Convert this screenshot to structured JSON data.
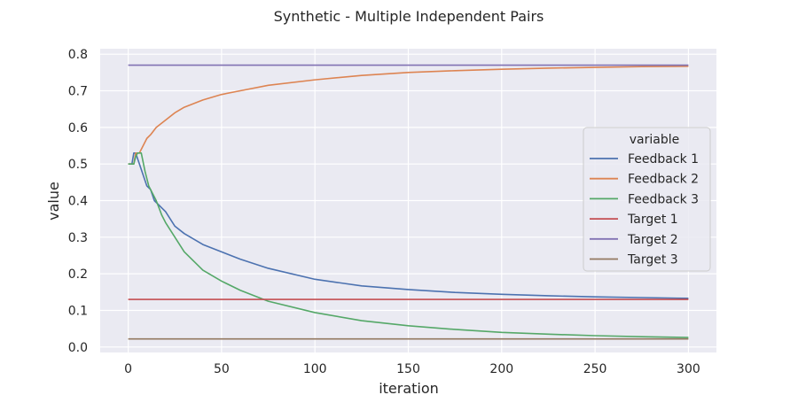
{
  "chart_data": {
    "type": "line",
    "title": "Synthetic - Multiple Independent Pairs",
    "xlabel": "iteration",
    "ylabel": "value",
    "xlim": [
      -15,
      315
    ],
    "ylim": [
      -0.015,
      0.815
    ],
    "xticks": [
      0,
      50,
      100,
      150,
      200,
      250,
      300
    ],
    "yticks": [
      0.0,
      0.1,
      0.2,
      0.3,
      0.4,
      0.5,
      0.6,
      0.7,
      0.8
    ],
    "ytick_labels": [
      "0.0",
      "0.1",
      "0.2",
      "0.3",
      "0.4",
      "0.5",
      "0.6",
      "0.7",
      "0.8"
    ],
    "grid": true,
    "legend": {
      "title": "variable",
      "position": "right"
    },
    "series": [
      {
        "name": "Feedback 1",
        "color": "#4c72b0",
        "x": [
          0,
          2,
          3,
          4,
          6,
          8,
          10,
          12,
          14,
          16,
          18,
          20,
          25,
          30,
          40,
          50,
          60,
          75,
          100,
          125,
          150,
          175,
          200,
          225,
          250,
          275,
          300
        ],
        "y": [
          0.5,
          0.5,
          0.53,
          0.53,
          0.5,
          0.47,
          0.44,
          0.43,
          0.4,
          0.39,
          0.38,
          0.37,
          0.33,
          0.31,
          0.28,
          0.26,
          0.24,
          0.215,
          0.185,
          0.167,
          0.157,
          0.149,
          0.144,
          0.14,
          0.137,
          0.135,
          0.133
        ]
      },
      {
        "name": "Feedback 2",
        "color": "#dd8452",
        "x": [
          0,
          2,
          3,
          4,
          6,
          8,
          10,
          12,
          15,
          20,
          25,
          30,
          40,
          50,
          60,
          75,
          100,
          125,
          150,
          175,
          200,
          225,
          250,
          275,
          300
        ],
        "y": [
          0.5,
          0.5,
          0.5,
          0.53,
          0.53,
          0.55,
          0.57,
          0.58,
          0.6,
          0.62,
          0.64,
          0.655,
          0.675,
          0.69,
          0.7,
          0.715,
          0.73,
          0.742,
          0.75,
          0.755,
          0.759,
          0.762,
          0.764,
          0.766,
          0.767
        ]
      },
      {
        "name": "Feedback 3",
        "color": "#55a868",
        "x": [
          0,
          3,
          4,
          5,
          7,
          9,
          11,
          13,
          15,
          18,
          20,
          25,
          30,
          40,
          50,
          60,
          75,
          100,
          125,
          150,
          175,
          200,
          225,
          250,
          275,
          300
        ],
        "y": [
          0.5,
          0.5,
          0.52,
          0.53,
          0.53,
          0.48,
          0.44,
          0.42,
          0.4,
          0.36,
          0.34,
          0.3,
          0.26,
          0.21,
          0.18,
          0.155,
          0.125,
          0.094,
          0.072,
          0.058,
          0.048,
          0.04,
          0.035,
          0.031,
          0.028,
          0.026
        ]
      },
      {
        "name": "Target 1",
        "color": "#c44e52",
        "x": [
          0,
          300
        ],
        "y": [
          0.13,
          0.13
        ]
      },
      {
        "name": "Target 2",
        "color": "#8172b3",
        "x": [
          0,
          300
        ],
        "y": [
          0.77,
          0.77
        ]
      },
      {
        "name": "Target 3",
        "color": "#937860",
        "x": [
          0,
          300
        ],
        "y": [
          0.022,
          0.022
        ]
      }
    ]
  }
}
